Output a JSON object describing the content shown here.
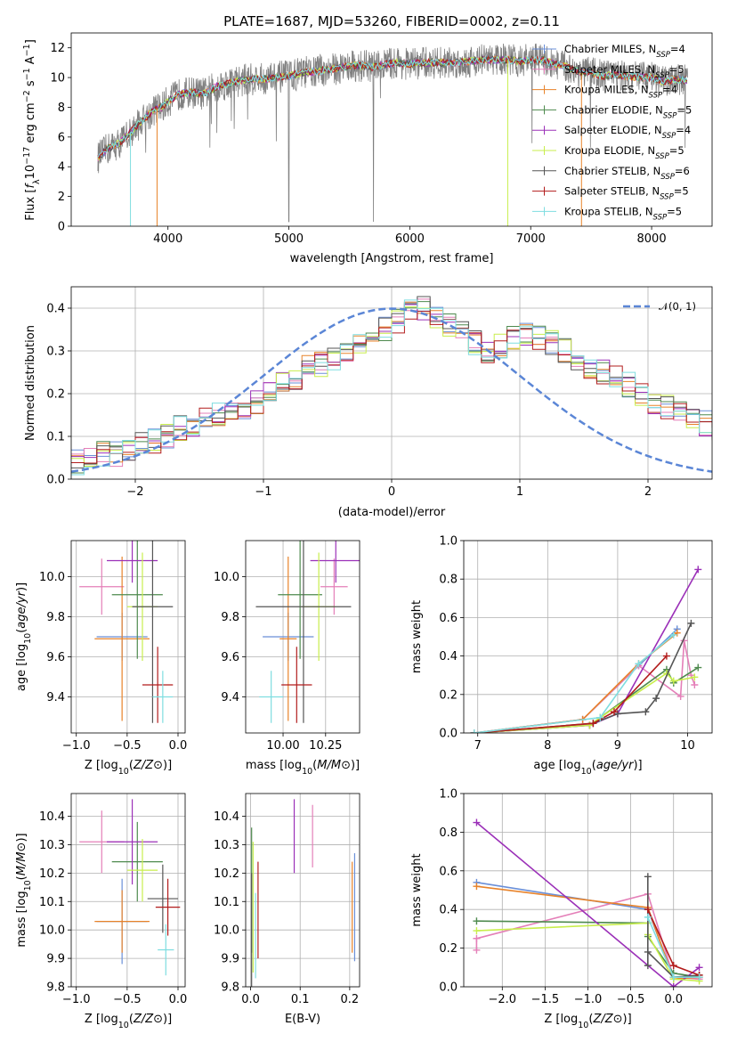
{
  "figure_title": "PLATE=1687, MJD=53260, FIBERID=0002, z=0.11",
  "colors": {
    "Chabrier MILES": "#6a8fd8",
    "Salpeter MILES": "#e47fb8",
    "Kroupa MILES": "#e8832a",
    "Chabrier ELODIE": "#4e8a4e",
    "Salpeter ELODIE": "#9b30b8",
    "Kroupa ELODIE": "#c8ee4c",
    "Chabrier STELIB": "#555555",
    "Salpeter STELIB": "#b21c1c",
    "Kroupa STELIB": "#7fdde0",
    "data": "#808080",
    "normal": "#5b86d6"
  },
  "chart_data": [
    {
      "type": "line",
      "id": "spectrum",
      "title": "PLATE=1687, MJD=53260, FIBERID=0002, z=0.11",
      "xlabel": "wavelength [Angstrom, rest frame]",
      "ylabel": "Flux [f_λ 10^-17 erg cm^-2 s^-1 A^-1]",
      "ylabel_parts": {
        "a": "Flux [",
        "f": "f",
        "lam": "λ",
        "ten": "10",
        "e1": "−17",
        "b": " erg cm",
        "e2": "−2",
        "c": " s",
        "e3": "−1",
        "d": " A",
        "e4": "−1",
        "end": "]"
      },
      "xlim": [
        3200,
        8500
      ],
      "ylim": [
        0,
        13
      ],
      "xticks": [
        4000,
        5000,
        6000,
        7000,
        8000
      ],
      "yticks": [
        0,
        2,
        4,
        6,
        8,
        10,
        12
      ],
      "grid": false,
      "legend_position": "top-right",
      "legend": [
        {
          "label": "Chabrier MILES",
          "n": "4"
        },
        {
          "label": "Salpeter MILES",
          "n": "5"
        },
        {
          "label": "Kroupa MILES",
          "n": "4"
        },
        {
          "label": "Chabrier ELODIE",
          "n": "5"
        },
        {
          "label": "Salpeter ELODIE",
          "n": "4"
        },
        {
          "label": "Kroupa ELODIE",
          "n": "5"
        },
        {
          "label": "Chabrier STELIB",
          "n": "6"
        },
        {
          "label": "Salpeter STELIB",
          "n": "5"
        },
        {
          "label": "Kroupa STELIB",
          "n": "5"
        }
      ],
      "legend_n_prefix": "N",
      "legend_n_sub": "SSP",
      "continuum": [
        [
          3420,
          4.6
        ],
        [
          3500,
          5.2
        ],
        [
          3600,
          5.6
        ],
        [
          3700,
          6.4
        ],
        [
          3800,
          7.2
        ],
        [
          3900,
          7.9
        ],
        [
          3950,
          8.0
        ],
        [
          4000,
          8.4
        ],
        [
          4100,
          8.9
        ],
        [
          4200,
          9.0
        ],
        [
          4300,
          8.9
        ],
        [
          4400,
          9.4
        ],
        [
          4500,
          9.6
        ],
        [
          4600,
          9.8
        ],
        [
          4700,
          9.9
        ],
        [
          4800,
          9.9
        ],
        [
          4900,
          10.0
        ],
        [
          5000,
          10.1
        ],
        [
          5100,
          10.3
        ],
        [
          5200,
          10.4
        ],
        [
          5300,
          10.5
        ],
        [
          5400,
          10.6
        ],
        [
          5500,
          10.8
        ],
        [
          5600,
          10.8
        ],
        [
          5700,
          10.7
        ],
        [
          5800,
          10.9
        ],
        [
          5900,
          11.0
        ],
        [
          6000,
          10.9
        ],
        [
          6100,
          11.0
        ],
        [
          6200,
          11.0
        ],
        [
          6300,
          11.0
        ],
        [
          6400,
          11.0
        ],
        [
          6500,
          11.1
        ],
        [
          6600,
          11.2
        ],
        [
          6700,
          11.2
        ],
        [
          6800,
          11.2
        ],
        [
          6900,
          11.1
        ],
        [
          7000,
          11.2
        ],
        [
          7100,
          11.2
        ],
        [
          7200,
          10.9
        ],
        [
          7300,
          10.7
        ],
        [
          7400,
          10.4
        ],
        [
          7500,
          10.3
        ],
        [
          7600,
          10.1
        ],
        [
          7700,
          10.2
        ],
        [
          7800,
          10.1
        ],
        [
          7900,
          10.0
        ],
        [
          8000,
          10.0
        ],
        [
          8100,
          9.7
        ],
        [
          8200,
          9.9
        ],
        [
          8300,
          9.8
        ]
      ]
    },
    {
      "type": "histogram",
      "id": "residuals",
      "xlabel": "(data-model)/error",
      "ylabel": "Normed distribution",
      "xlim": [
        -2.5,
        2.5
      ],
      "ylim": [
        0,
        0.45
      ],
      "xticks": [
        -2,
        -1,
        0,
        1,
        2
      ],
      "yticks": [
        0.0,
        0.1,
        0.2,
        0.3,
        0.4
      ],
      "grid": true,
      "legend_position": "top-right",
      "legend": [
        {
          "label": "N(0,1)",
          "display": "𝒩(0, 1)"
        }
      ],
      "bin_edges_start": -2.5,
      "bin_width": 0.1,
      "profile": [
        0.04,
        0.05,
        0.06,
        0.06,
        0.07,
        0.08,
        0.09,
        0.1,
        0.12,
        0.13,
        0.14,
        0.15,
        0.16,
        0.17,
        0.18,
        0.2,
        0.22,
        0.24,
        0.26,
        0.27,
        0.28,
        0.3,
        0.31,
        0.32,
        0.35,
        0.37,
        0.39,
        0.4,
        0.38,
        0.36,
        0.34,
        0.32,
        0.3,
        0.31,
        0.33,
        0.34,
        0.33,
        0.32,
        0.3,
        0.28,
        0.26,
        0.25,
        0.24,
        0.22,
        0.2,
        0.18,
        0.17,
        0.16,
        0.14,
        0.13,
        0.12,
        0.1
      ]
    },
    {
      "type": "errorbar",
      "id": "age-vs-Z",
      "xlabel": "Z [log10(Z/Z⊙)]",
      "ylabel": "age [log10(age/yr)]",
      "xlim": [
        -1.05,
        0.07
      ],
      "ylim": [
        9.22,
        10.18
      ],
      "xticks": [
        -1.0,
        -0.5,
        0.0
      ],
      "yticks": [
        9.4,
        9.6,
        9.8,
        10.0
      ],
      "grid": true,
      "points": [
        {
          "series": "Chabrier MILES",
          "x": -0.55,
          "xerr": 0.25,
          "y": 9.7,
          "yerr": 0.12
        },
        {
          "series": "Salpeter MILES",
          "x": -0.75,
          "xerr": 0.22,
          "y": 9.95,
          "yerr": 0.14
        },
        {
          "series": "Kroupa MILES",
          "x": -0.55,
          "xerr": 0.27,
          "y": 9.69,
          "yerr": 0.41
        },
        {
          "series": "Chabrier ELODIE",
          "x": -0.4,
          "xerr": 0.25,
          "y": 9.91,
          "yerr": 0.32
        },
        {
          "series": "Salpeter ELODIE",
          "x": -0.45,
          "xerr": 0.25,
          "y": 10.08,
          "yerr": 0.11
        },
        {
          "series": "Kroupa ELODIE",
          "x": -0.35,
          "xerr": 0.15,
          "y": 9.85,
          "yerr": 0.27
        },
        {
          "series": "Chabrier STELIB",
          "x": -0.25,
          "xerr": 0.2,
          "y": 9.85,
          "yerr": 0.58
        },
        {
          "series": "Salpeter STELIB",
          "x": -0.2,
          "xerr": 0.15,
          "y": 9.46,
          "yerr": 0.19
        },
        {
          "series": "Kroupa STELIB",
          "x": -0.15,
          "xerr": 0.1,
          "y": 9.4,
          "yerr": 0.13
        }
      ]
    },
    {
      "type": "errorbar",
      "id": "age-vs-mass",
      "xlabel": "mass [log10(M/M⊙)]",
      "ylabel": "",
      "xlim": [
        9.78,
        10.45
      ],
      "ylim": [
        9.22,
        10.18
      ],
      "xticks": [
        10.0,
        10.25
      ],
      "yticks": [
        9.4,
        9.6,
        9.8,
        10.0
      ],
      "grid": true,
      "points": [
        {
          "series": "Chabrier MILES",
          "x": 10.03,
          "xerr": 0.15,
          "y": 9.7,
          "yerr": 0.12
        },
        {
          "series": "Salpeter MILES",
          "x": 10.3,
          "xerr": 0.08,
          "y": 9.95,
          "yerr": 0.14
        },
        {
          "series": "Kroupa MILES",
          "x": 10.03,
          "xerr": 0.05,
          "y": 9.69,
          "yerr": 0.41
        },
        {
          "series": "Chabrier ELODIE",
          "x": 10.1,
          "xerr": 0.13,
          "y": 9.91,
          "yerr": 0.32
        },
        {
          "series": "Salpeter ELODIE",
          "x": 10.31,
          "xerr": 0.15,
          "y": 10.08,
          "yerr": 0.11
        },
        {
          "series": "Kroupa ELODIE",
          "x": 10.21,
          "xerr": 0.1,
          "y": 9.85,
          "yerr": 0.27
        },
        {
          "series": "Chabrier STELIB",
          "x": 10.12,
          "xerr": 0.28,
          "y": 9.85,
          "yerr": 0.58
        },
        {
          "series": "Salpeter STELIB",
          "x": 10.08,
          "xerr": 0.09,
          "y": 9.46,
          "yerr": 0.19
        },
        {
          "series": "Kroupa STELIB",
          "x": 9.93,
          "xerr": 0.07,
          "y": 9.4,
          "yerr": 0.13
        }
      ]
    },
    {
      "type": "line",
      "id": "mass-weight-vs-age",
      "xlabel": "age [log10(age/yr)]",
      "ylabel": "mass weight",
      "xlim": [
        6.8,
        10.35
      ],
      "ylim": [
        0.0,
        1.0
      ],
      "xticks": [
        7,
        8,
        9,
        10
      ],
      "yticks": [
        0.0,
        0.2,
        0.4,
        0.6,
        0.8,
        1.0
      ],
      "grid": true,
      "series": [
        {
          "name": "Chabrier MILES",
          "x": [
            6.95,
            8.5,
            9.3,
            9.85
          ],
          "y": [
            0.0,
            0.07,
            0.35,
            0.54
          ]
        },
        {
          "name": "Salpeter MILES",
          "x": [
            6.95,
            8.5,
            9.3,
            9.9,
            9.95,
            10.05,
            10.1
          ],
          "y": [
            0.0,
            0.07,
            0.35,
            0.19,
            0.48,
            0.3,
            0.25
          ]
        },
        {
          "name": "Kroupa MILES",
          "x": [
            6.95,
            8.5,
            9.3,
            9.85
          ],
          "y": [
            0.0,
            0.07,
            0.36,
            0.52
          ]
        },
        {
          "name": "Chabrier ELODIE",
          "x": [
            6.95,
            8.6,
            8.75,
            9.7,
            9.8,
            10.15
          ],
          "y": [
            0.0,
            0.04,
            0.08,
            0.33,
            0.26,
            0.34
          ]
        },
        {
          "name": "Salpeter ELODIE",
          "x": [
            6.95,
            8.6,
            9.0,
            10.15
          ],
          "y": [
            0.0,
            0.04,
            0.1,
            0.85
          ]
        },
        {
          "name": "Kroupa ELODIE",
          "x": [
            6.95,
            8.6,
            8.75,
            9.7,
            9.8,
            10.1
          ],
          "y": [
            0.0,
            0.04,
            0.08,
            0.31,
            0.27,
            0.29
          ]
        },
        {
          "name": "Chabrier STELIB",
          "x": [
            6.95,
            8.65,
            9.0,
            9.4,
            9.55,
            10.05
          ],
          "y": [
            0.0,
            0.05,
            0.1,
            0.11,
            0.18,
            0.57
          ]
        },
        {
          "name": "Salpeter STELIB",
          "x": [
            6.95,
            8.65,
            8.95,
            9.7
          ],
          "y": [
            0.0,
            0.05,
            0.11,
            0.4
          ]
        },
        {
          "name": "Kroupa STELIB",
          "x": [
            6.95,
            8.75,
            9.3,
            9.8
          ],
          "y": [
            0.0,
            0.08,
            0.36,
            0.51
          ]
        }
      ]
    },
    {
      "type": "errorbar",
      "id": "mass-vs-Z",
      "xlabel": "Z [log10(Z/Z⊙)]",
      "ylabel": "mass [log10(M/M⊙)]",
      "xlim": [
        -1.05,
        0.07
      ],
      "ylim": [
        9.8,
        10.48
      ],
      "xticks": [
        -1.0,
        -0.5,
        0.0
      ],
      "yticks": [
        9.8,
        9.9,
        10.0,
        10.1,
        10.2,
        10.3,
        10.4
      ],
      "grid": true,
      "points": [
        {
          "series": "Chabrier MILES",
          "x": -0.55,
          "xerr": 0.25,
          "y": 10.03,
          "yerr": 0.15
        },
        {
          "series": "Salpeter MILES",
          "x": -0.75,
          "xerr": 0.22,
          "y": 10.31,
          "yerr": 0.11
        },
        {
          "series": "Kroupa MILES",
          "x": -0.55,
          "xerr": 0.27,
          "y": 10.03,
          "yerr": 0.11
        },
        {
          "series": "Chabrier ELODIE",
          "x": -0.4,
          "xerr": 0.25,
          "y": 10.24,
          "yerr": 0.14
        },
        {
          "series": "Salpeter ELODIE",
          "x": -0.45,
          "xerr": 0.25,
          "y": 10.31,
          "yerr": 0.15
        },
        {
          "series": "Kroupa ELODIE",
          "x": -0.35,
          "xerr": 0.15,
          "y": 10.21,
          "yerr": 0.11
        },
        {
          "series": "Chabrier STELIB",
          "x": -0.15,
          "xerr": 0.15,
          "y": 10.11,
          "yerr": 0.12
        },
        {
          "series": "Salpeter STELIB",
          "x": -0.1,
          "xerr": 0.12,
          "y": 10.08,
          "yerr": 0.1
        },
        {
          "series": "Kroupa STELIB",
          "x": -0.12,
          "xerr": 0.08,
          "y": 9.93,
          "yerr": 0.09
        }
      ]
    },
    {
      "type": "errorbar",
      "id": "mass-vs-EBV",
      "xlabel": "E(B-V)",
      "ylabel": "",
      "xlim": [
        -0.01,
        0.22
      ],
      "ylim": [
        9.8,
        10.48
      ],
      "xticks": [
        0.0,
        0.1,
        0.2
      ],
      "yticks": [
        9.8,
        9.9,
        10.0,
        10.1,
        10.2,
        10.3,
        10.4
      ],
      "grid": true,
      "points": [
        {
          "series": "Chabrier MILES",
          "x": 0.21,
          "xerr": 0,
          "y": 10.08,
          "yerr": 0.19
        },
        {
          "series": "Salpeter MILES",
          "x": 0.125,
          "xerr": 0,
          "y": 10.33,
          "yerr": 0.11
        },
        {
          "series": "Kroupa MILES",
          "x": 0.205,
          "xerr": 0,
          "y": 10.08,
          "yerr": 0.16
        },
        {
          "series": "Chabrier ELODIE",
          "x": 0.002,
          "xerr": 0,
          "y": 10.14,
          "yerr": 0.22
        },
        {
          "series": "Salpeter ELODIE",
          "x": 0.088,
          "xerr": 0,
          "y": 10.33,
          "yerr": 0.13
        },
        {
          "series": "Kroupa ELODIE",
          "x": 0.005,
          "xerr": 0,
          "y": 10.08,
          "yerr": 0.23
        },
        {
          "series": "Chabrier STELIB",
          "x": 0.002,
          "xerr": 0,
          "y": 10.0,
          "yerr": 0.2
        },
        {
          "series": "Salpeter STELIB",
          "x": 0.015,
          "xerr": 0,
          "y": 10.07,
          "yerr": 0.17
        },
        {
          "series": "Kroupa STELIB",
          "x": 0.01,
          "xerr": 0,
          "y": 9.98,
          "yerr": 0.15
        }
      ]
    },
    {
      "type": "line",
      "id": "mass-weight-vs-Z",
      "xlabel": "Z [log10(Z/Z⊙)]",
      "ylabel": "mass weight",
      "xlim": [
        -2.45,
        0.45
      ],
      "ylim": [
        0.0,
        1.0
      ],
      "xticks": [
        -2.0,
        -1.5,
        -1.0,
        -0.5,
        0.0
      ],
      "yticks": [
        0.0,
        0.2,
        0.4,
        0.6,
        0.8,
        1.0
      ],
      "grid": true,
      "series": [
        {
          "name": "Chabrier MILES",
          "x": [
            -2.3,
            -0.3,
            0.0,
            0.3
          ],
          "y": [
            0.54,
            0.4,
            0.05,
            0.05
          ]
        },
        {
          "name": "Salpeter MILES",
          "x": [
            -2.3,
            -2.3,
            -0.3,
            0.0,
            0.3
          ],
          "y": [
            0.19,
            0.25,
            0.48,
            0.05,
            0.04
          ]
        },
        {
          "name": "Kroupa MILES",
          "x": [
            -2.3,
            -0.3,
            0.0,
            0.3
          ],
          "y": [
            0.52,
            0.41,
            0.04,
            0.05
          ]
        },
        {
          "name": "Chabrier ELODIE",
          "x": [
            -2.3,
            -0.3,
            -0.3,
            0.0,
            0.3
          ],
          "y": [
            0.34,
            0.33,
            0.26,
            0.07,
            0.05
          ]
        },
        {
          "name": "Salpeter ELODIE",
          "x": [
            -2.3,
            0.0,
            0.3
          ],
          "y": [
            0.85,
            0.0,
            0.1
          ]
        },
        {
          "name": "Kroupa ELODIE",
          "x": [
            -2.3,
            -0.3,
            -0.3,
            0.0,
            0.3
          ],
          "y": [
            0.29,
            0.33,
            0.27,
            0.04,
            0.03
          ]
        },
        {
          "name": "Chabrier STELIB",
          "x": [
            -0.3,
            -0.3,
            -0.3,
            0.0,
            0.3
          ],
          "y": [
            0.57,
            0.11,
            0.18,
            0.05,
            0.06
          ]
        },
        {
          "name": "Salpeter STELIB",
          "x": [
            -0.3,
            0.0,
            0.3
          ],
          "y": [
            0.4,
            0.11,
            0.06
          ]
        },
        {
          "name": "Kroupa STELIB",
          "x": [
            -0.3,
            0.0,
            0.3
          ],
          "y": [
            0.36,
            0.05,
            0.05
          ]
        }
      ]
    }
  ]
}
